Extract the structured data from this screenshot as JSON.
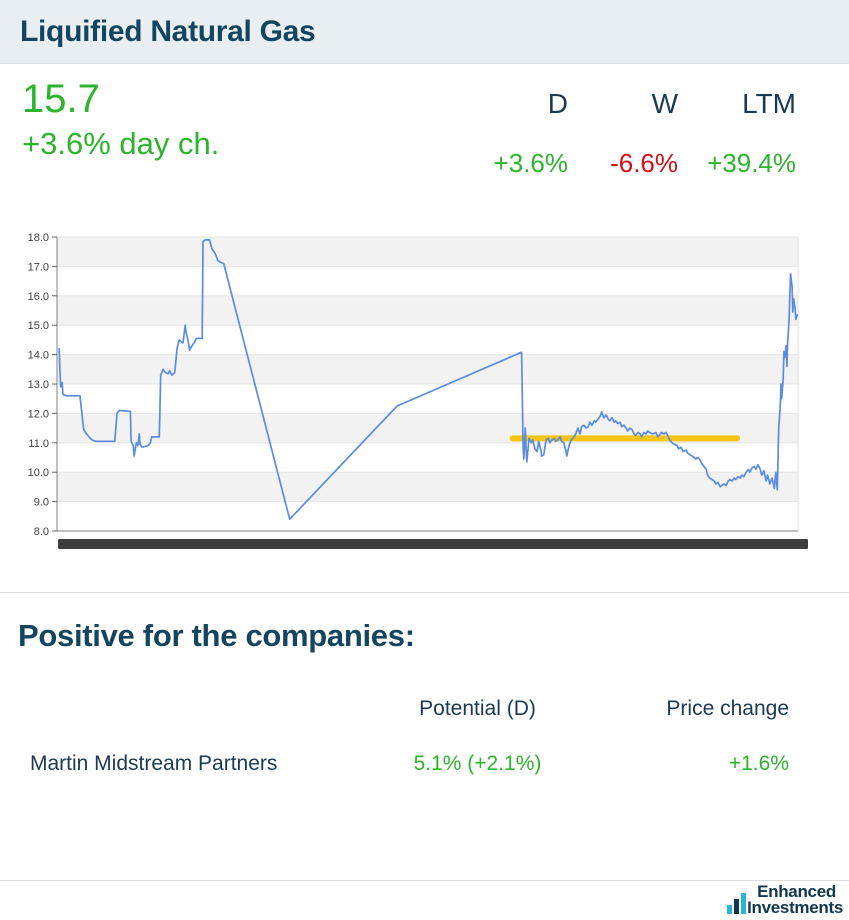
{
  "colors": {
    "green": "#2db42d",
    "red": "#d40f16",
    "heading_navy": "#14455e",
    "text_navy": "#1b3a52",
    "header_bg": "#e9eef3",
    "line_blue": "#5b8ce0",
    "highlight_yellow": "#f5c414",
    "band_gray": "#f2f2f2",
    "scrollbar_dark": "#3d3d3d",
    "logo_teal": "#29b6d5",
    "logo_navy": "#14374e"
  },
  "header": {
    "title": "Liquified Natural Gas"
  },
  "summary": {
    "price": "15.7",
    "day_change": "+3.6% day ch.",
    "periods": [
      {
        "label": "D",
        "value": "+3.6%",
        "trend": "up"
      },
      {
        "label": "W",
        "value": "-6.6%",
        "trend": "down"
      },
      {
        "label": "LTM",
        "value": "+39.4%",
        "trend": "up"
      }
    ]
  },
  "chart_data": {
    "type": "line",
    "title": "",
    "xlabel": "",
    "ylabel": "",
    "ylim": [
      8,
      18
    ],
    "ytick_labels": [
      "8.0",
      "9.0",
      "10.0",
      "11.0",
      "12.0",
      "13.0",
      "14.0",
      "15.0",
      "16.0",
      "17.0",
      "18.0"
    ],
    "grid": "horizontal-bands-1-unit",
    "legend": "none",
    "x_axis_note": "x tick labels hidden behind dark range scrollbar",
    "highlight_line": {
      "value": 11.15,
      "x_start": 0.615,
      "x_end": 0.918
    },
    "series": [
      {
        "name": "price",
        "points": [
          [
            0.003,
            14.2
          ],
          [
            0.004,
            13.4
          ],
          [
            0.005,
            12.9
          ],
          [
            0.007,
            13.05
          ],
          [
            0.008,
            12.65
          ],
          [
            0.013,
            12.6
          ],
          [
            0.031,
            12.6
          ],
          [
            0.034,
            11.9
          ],
          [
            0.036,
            11.45
          ],
          [
            0.04,
            11.3
          ],
          [
            0.045,
            11.15
          ],
          [
            0.049,
            11.07
          ],
          [
            0.054,
            11.05
          ],
          [
            0.078,
            11.05
          ],
          [
            0.081,
            12.0
          ],
          [
            0.084,
            12.1
          ],
          [
            0.099,
            12.07
          ],
          [
            0.1,
            11.05
          ],
          [
            0.103,
            10.9
          ],
          [
            0.104,
            10.55
          ],
          [
            0.107,
            11.0
          ],
          [
            0.109,
            10.9
          ],
          [
            0.111,
            11.3
          ],
          [
            0.112,
            10.95
          ],
          [
            0.115,
            10.85
          ],
          [
            0.123,
            10.9
          ],
          [
            0.126,
            11.0
          ],
          [
            0.128,
            11.2
          ],
          [
            0.138,
            11.2
          ],
          [
            0.14,
            13.3
          ],
          [
            0.143,
            13.5
          ],
          [
            0.146,
            13.4
          ],
          [
            0.15,
            13.35
          ],
          [
            0.152,
            13.45
          ],
          [
            0.155,
            13.3
          ],
          [
            0.159,
            13.4
          ],
          [
            0.162,
            14.2
          ],
          [
            0.165,
            14.5
          ],
          [
            0.167,
            14.45
          ],
          [
            0.17,
            14.4
          ],
          [
            0.173,
            15.0
          ],
          [
            0.174,
            14.8
          ],
          [
            0.177,
            14.45
          ],
          [
            0.179,
            14.15
          ],
          [
            0.182,
            14.3
          ],
          [
            0.185,
            14.4
          ],
          [
            0.188,
            14.55
          ],
          [
            0.196,
            14.55
          ],
          [
            0.197,
            17.85
          ],
          [
            0.2,
            17.9
          ],
          [
            0.206,
            17.9
          ],
          [
            0.209,
            17.6
          ],
          [
            0.212,
            17.5
          ],
          [
            0.215,
            17.35
          ],
          [
            0.217,
            17.2
          ],
          [
            0.22,
            17.15
          ],
          [
            0.225,
            17.1
          ],
          [
            0.314,
            8.4
          ],
          [
            0.459,
            12.25
          ],
          [
            0.627,
            14.08
          ],
          [
            0.629,
            10.9
          ],
          [
            0.63,
            10.45
          ],
          [
            0.632,
            11.5
          ],
          [
            0.633,
            10.8
          ],
          [
            0.634,
            10.35
          ],
          [
            0.637,
            11.15
          ],
          [
            0.64,
            11.0
          ],
          [
            0.642,
            11.1
          ],
          [
            0.645,
            10.8
          ],
          [
            0.648,
            10.7
          ],
          [
            0.65,
            11.05
          ],
          [
            0.653,
            10.75
          ],
          [
            0.654,
            10.55
          ],
          [
            0.657,
            10.6
          ],
          [
            0.66,
            11.1
          ],
          [
            0.663,
            11.15
          ],
          [
            0.665,
            11.0
          ],
          [
            0.668,
            11.1
          ],
          [
            0.671,
            11.15
          ],
          [
            0.673,
            11.05
          ],
          [
            0.676,
            11.1
          ],
          [
            0.679,
            11.2
          ],
          [
            0.681,
            11.05
          ],
          [
            0.684,
            11.0
          ],
          [
            0.687,
            10.7
          ],
          [
            0.688,
            10.55
          ],
          [
            0.691,
            10.9
          ],
          [
            0.694,
            11.1
          ],
          [
            0.696,
            11.15
          ],
          [
            0.7,
            11.3
          ],
          [
            0.703,
            11.5
          ],
          [
            0.706,
            11.3
          ],
          [
            0.708,
            11.55
          ],
          [
            0.711,
            11.6
          ],
          [
            0.714,
            11.5
          ],
          [
            0.717,
            11.55
          ],
          [
            0.719,
            11.7
          ],
          [
            0.722,
            11.6
          ],
          [
            0.725,
            11.75
          ],
          [
            0.727,
            11.7
          ],
          [
            0.73,
            11.8
          ],
          [
            0.733,
            11.9
          ],
          [
            0.735,
            12.05
          ],
          [
            0.738,
            11.85
          ],
          [
            0.741,
            11.95
          ],
          [
            0.744,
            11.8
          ],
          [
            0.746,
            11.75
          ],
          [
            0.749,
            11.85
          ],
          [
            0.752,
            11.7
          ],
          [
            0.754,
            11.75
          ],
          [
            0.757,
            11.65
          ],
          [
            0.76,
            11.7
          ],
          [
            0.762,
            11.55
          ],
          [
            0.765,
            11.6
          ],
          [
            0.768,
            11.5
          ],
          [
            0.77,
            11.4
          ],
          [
            0.773,
            11.5
          ],
          [
            0.776,
            11.45
          ],
          [
            0.779,
            11.3
          ],
          [
            0.781,
            11.25
          ],
          [
            0.784,
            11.35
          ],
          [
            0.787,
            11.3
          ],
          [
            0.789,
            11.2
          ],
          [
            0.792,
            11.35
          ],
          [
            0.795,
            11.3
          ],
          [
            0.797,
            11.4
          ],
          [
            0.8,
            11.35
          ],
          [
            0.804,
            11.3
          ],
          [
            0.808,
            11.35
          ],
          [
            0.811,
            11.2
          ],
          [
            0.814,
            11.3
          ],
          [
            0.816,
            11.35
          ],
          [
            0.819,
            11.3
          ],
          [
            0.822,
            11.35
          ],
          [
            0.824,
            11.25
          ],
          [
            0.827,
            11.1
          ],
          [
            0.83,
            11.0
          ],
          [
            0.833,
            10.95
          ],
          [
            0.837,
            10.9
          ],
          [
            0.839,
            10.8
          ],
          [
            0.842,
            10.85
          ],
          [
            0.845,
            10.7
          ],
          [
            0.849,
            10.75
          ],
          [
            0.851,
            10.65
          ],
          [
            0.854,
            10.6
          ],
          [
            0.857,
            10.55
          ],
          [
            0.86,
            10.5
          ],
          [
            0.862,
            10.45
          ],
          [
            0.865,
            10.5
          ],
          [
            0.868,
            10.4
          ],
          [
            0.87,
            10.3
          ],
          [
            0.873,
            10.2
          ],
          [
            0.876,
            10.1
          ],
          [
            0.878,
            9.9
          ],
          [
            0.881,
            9.8
          ],
          [
            0.884,
            9.75
          ],
          [
            0.887,
            9.7
          ],
          [
            0.889,
            9.6
          ],
          [
            0.892,
            9.65
          ],
          [
            0.895,
            9.5
          ],
          [
            0.897,
            9.55
          ],
          [
            0.9,
            9.6
          ],
          [
            0.903,
            9.55
          ],
          [
            0.906,
            9.7
          ],
          [
            0.908,
            9.75
          ],
          [
            0.911,
            9.7
          ],
          [
            0.914,
            9.8
          ],
          [
            0.916,
            9.75
          ],
          [
            0.919,
            9.85
          ],
          [
            0.922,
            9.8
          ],
          [
            0.924,
            9.9
          ],
          [
            0.927,
            9.85
          ],
          [
            0.93,
            10.0
          ],
          [
            0.933,
            10.1
          ],
          [
            0.935,
            10.0
          ],
          [
            0.938,
            10.15
          ],
          [
            0.941,
            10.2
          ],
          [
            0.943,
            10.1
          ],
          [
            0.946,
            10.25
          ],
          [
            0.949,
            10.1
          ],
          [
            0.951,
            9.9
          ],
          [
            0.954,
            10.05
          ],
          [
            0.957,
            9.7
          ],
          [
            0.959,
            9.9
          ],
          [
            0.962,
            9.6
          ],
          [
            0.965,
            9.8
          ],
          [
            0.968,
            9.45
          ],
          [
            0.97,
            10.0
          ],
          [
            0.972,
            9.4
          ],
          [
            0.974,
            11.5
          ],
          [
            0.976,
            12.2
          ],
          [
            0.977,
            13.0
          ],
          [
            0.978,
            12.5
          ],
          [
            0.98,
            13.2
          ],
          [
            0.981,
            14.1
          ],
          [
            0.982,
            13.9
          ],
          [
            0.984,
            14.3
          ],
          [
            0.985,
            13.6
          ],
          [
            0.986,
            14.4
          ],
          [
            0.988,
            15.2
          ],
          [
            0.989,
            16.0
          ],
          [
            0.99,
            16.75
          ],
          [
            0.992,
            16.3
          ],
          [
            0.993,
            15.45
          ],
          [
            0.994,
            15.9
          ],
          [
            0.996,
            15.6
          ],
          [
            0.997,
            15.2
          ],
          [
            0.999,
            15.35
          ]
        ]
      }
    ]
  },
  "companies": {
    "title": "Positive for the companies:",
    "columns": [
      "",
      "Potential (D)",
      "Price change"
    ],
    "rows": [
      {
        "name": "Martin Midstream Partners",
        "potential": "5.1% (+2.1%)",
        "price_change": "+1.6%",
        "trend": "up"
      }
    ]
  },
  "footer": {
    "brand_line1": "Enhanced",
    "brand_line2": "Investments"
  }
}
